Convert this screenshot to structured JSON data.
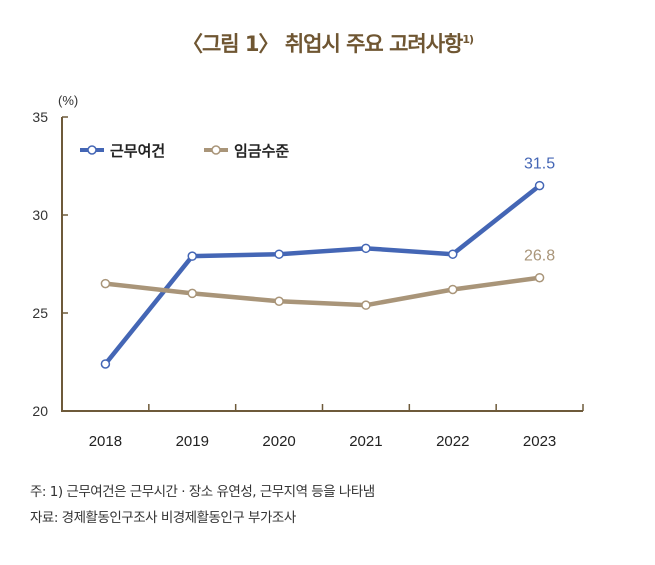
{
  "title": "〈그림 1〉 취업시 주요 고려사항",
  "title_sup": "1)",
  "chart_data": {
    "type": "line",
    "title": "〈그림 1〉 취업시 주요 고려사항",
    "ylabel": "(%)",
    "xlabel": "",
    "categories": [
      "2018",
      "2019",
      "2020",
      "2021",
      "2022",
      "2023"
    ],
    "ylim": [
      20,
      35
    ],
    "yticks": [
      "20",
      "25",
      "30",
      "35"
    ],
    "grid": false,
    "legend": "top-left",
    "series": [
      {
        "name": "근무여건",
        "color": "#4466b5",
        "values": [
          22.4,
          27.9,
          28.0,
          28.3,
          28.0,
          31.5
        ],
        "end_label": "31.5"
      },
      {
        "name": "임금수준",
        "color": "#a99579",
        "values": [
          26.5,
          26.0,
          25.6,
          25.4,
          26.2,
          26.8
        ],
        "end_label": "26.8"
      }
    ]
  },
  "notes": {
    "note": "주: 1) 근무여건은 근무시간 · 장소 유연성, 근무지역 등을 나타냄",
    "source": "자료: 경제활동인구조사 비경제활동인구 부가조사"
  },
  "colors": {
    "title": "#6f5632",
    "axis": "#6e5a3a"
  }
}
